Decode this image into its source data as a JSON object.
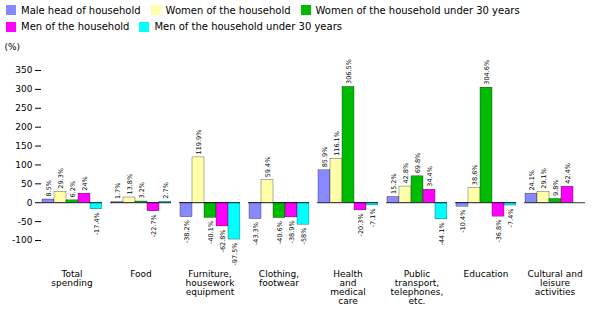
{
  "chart_data": {
    "type": "bar",
    "categories": [
      "Total\nspending",
      "Food",
      "Furniture,\nhousework\nequipment",
      "Clothing,\nfootwear",
      "Health\nand\nmedical\ncare",
      "Public\ntransport,\ntelephones,\netc.",
      "Education",
      "Cultural and\nleisure\nactivities"
    ],
    "series": [
      {
        "name": "Male head of household",
        "color": "#8888FF",
        "values": [
          8.5,
          1.7,
          -38.2,
          -43.3,
          85.9,
          15.2,
          -10.4,
          24.1
        ],
        "value_labels": [
          "8.5%",
          "1.7%",
          "-38.2%",
          "-43.3%",
          "85.9%",
          "15.2%",
          "-10.4%",
          "24.1%"
        ]
      },
      {
        "name": "Women of the household",
        "color": "#FFFFAA",
        "values": [
          29.3,
          13.8,
          119.9,
          59.4,
          116.1,
          42.8,
          38.6,
          29.1
        ],
        "value_labels": [
          "29.3%",
          "13.8%",
          "119.9%",
          "59.4%",
          "116.1%",
          "42.8%",
          "38.6%",
          "29.1%"
        ]
      },
      {
        "name": "Women of the household under 30 years",
        "color": "#00BB00",
        "values": [
          6.2,
          3.2,
          -40.1,
          -40.6,
          306.5,
          69.8,
          304.6,
          9.8
        ],
        "value_labels": [
          "6.2%",
          "3.2%",
          "-40.1%",
          "-40.6%",
          "306.5%",
          "69.8%",
          "304.6%",
          "9.8%"
        ]
      },
      {
        "name": "Men of the household",
        "color": "#FF00FF",
        "values": [
          24.0,
          -22.7,
          -62.8,
          -38.9,
          -20.3,
          34.4,
          -36.8,
          42.4
        ],
        "value_labels": [
          "24%",
          "-22.7%",
          "-62.8%",
          "-38.9%",
          "-20.3%",
          "34.4%",
          "-36.8%",
          "42.4%"
        ]
      },
      {
        "name": "Men of the household under 30 years",
        "color": "#00FFFF",
        "values": [
          -17.4,
          2.7,
          -97.5,
          -58.0,
          -7.1,
          -44.1,
          -7.4,
          0.0
        ],
        "value_labels": [
          "-17.4%",
          "2.7%",
          "-97.5%",
          "-58%",
          "-7.1%",
          "-44.1%",
          "-7.4%",
          null
        ]
      }
    ],
    "ylabel": "(%)",
    "ylim": [
      -100,
      350
    ],
    "yticks": [
      -100,
      -50,
      0,
      50,
      100,
      150,
      200,
      250,
      300,
      350
    ],
    "data_labels": true,
    "legend": "upper left"
  }
}
